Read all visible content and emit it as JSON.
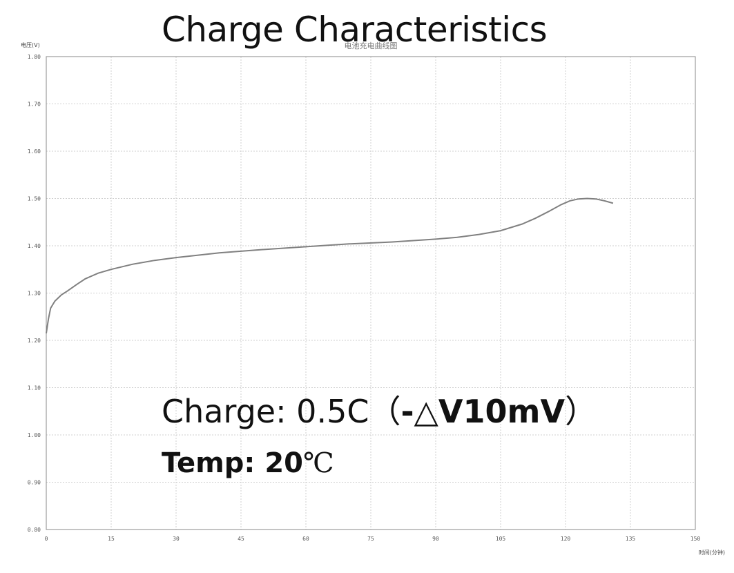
{
  "title": "Charge Characteristics",
  "inner_title": "电池充电曲线图",
  "conditions": {
    "charge_label": "Charge: 0.5C",
    "charge_paren_open": "（",
    "charge_delta": "-△V10mV",
    "charge_paren_close": "）",
    "temp_label": "Temp: 20",
    "temp_unit": "℃"
  },
  "chart_data": {
    "type": "line",
    "title": "Charge Characteristics",
    "ylabel": "电压(V)",
    "xlabel": "时间(分钟)",
    "xlim": [
      0,
      150
    ],
    "ylim": [
      0.8,
      1.8
    ],
    "x_ticks": [
      "0",
      "15",
      "30",
      "45",
      "60",
      "75",
      "90",
      "105",
      "120",
      "135",
      "150"
    ],
    "y_ticks": [
      "1.80",
      "1.70",
      "1.60",
      "1.50",
      "1.40",
      "1.30",
      "1.20",
      "1.10",
      "1.00",
      "0.90",
      "0.80"
    ],
    "grid": true,
    "line_color": "#808080",
    "series": [
      {
        "x": [
          0,
          0.5,
          1,
          2,
          3.5,
          5,
          7,
          9,
          12,
          15,
          20,
          25,
          30,
          40,
          50,
          60,
          70,
          80,
          90,
          95,
          100,
          105,
          110,
          113,
          116,
          119,
          121,
          123,
          125,
          127,
          129,
          131
        ],
        "y": [
          1.215,
          1.245,
          1.268,
          1.283,
          1.296,
          1.305,
          1.318,
          1.33,
          1.342,
          1.35,
          1.361,
          1.369,
          1.375,
          1.385,
          1.392,
          1.398,
          1.404,
          1.408,
          1.414,
          1.418,
          1.424,
          1.432,
          1.446,
          1.458,
          1.472,
          1.487,
          1.495,
          1.499,
          1.5,
          1.499,
          1.495,
          1.49
        ]
      }
    ]
  }
}
